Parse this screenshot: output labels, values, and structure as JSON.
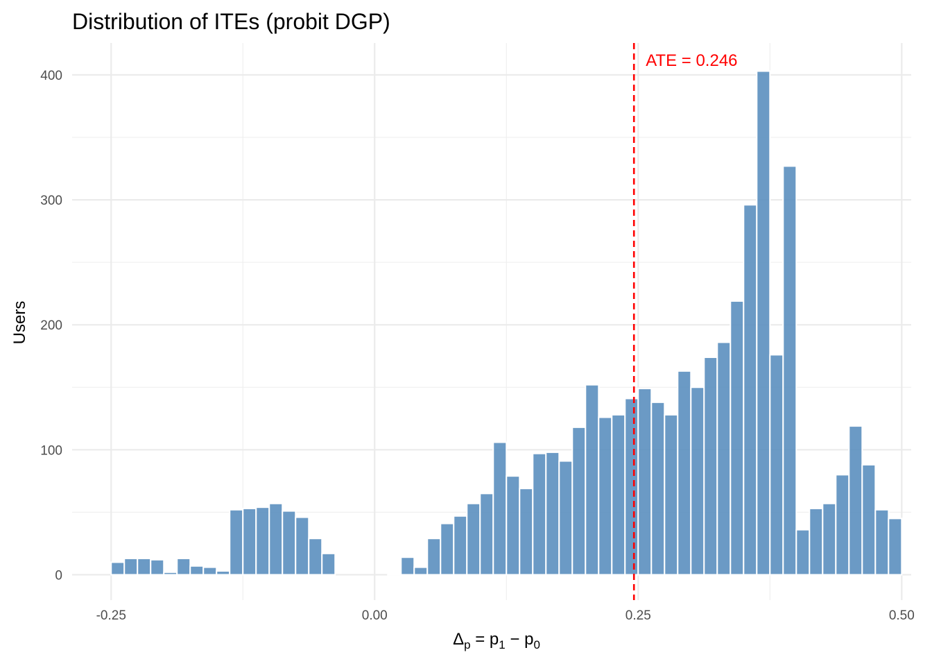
{
  "chart_data": {
    "type": "bar",
    "title": "Distribution of ITEs (probit DGP)",
    "xlabel": {
      "delta": "Δ",
      "sub_p": "p",
      "eq": " = p",
      "sub_1": "1",
      "minus": " − p",
      "sub_0": "0"
    },
    "ylabel": "Users",
    "x_ticks": [
      {
        "value": -0.25,
        "label": "-0.25"
      },
      {
        "value": 0.0,
        "label": "0.00"
      },
      {
        "value": 0.25,
        "label": "0.25"
      },
      {
        "value": 0.5,
        "label": "0.50"
      }
    ],
    "y_ticks": [
      {
        "value": 0,
        "label": "0"
      },
      {
        "value": 100,
        "label": "100"
      },
      {
        "value": 200,
        "label": "200"
      },
      {
        "value": 300,
        "label": "300"
      },
      {
        "value": 400,
        "label": "400"
      }
    ],
    "xlim": [
      -0.287,
      0.509
    ],
    "ylim": [
      -20.3,
      425.5
    ],
    "grid": true,
    "bin_start": -0.25,
    "bin_width": 0.0125,
    "values": [
      10,
      13,
      13,
      12,
      2,
      13,
      7,
      6,
      3,
      52,
      53,
      54,
      57,
      51,
      46,
      29,
      17,
      0,
      0,
      0,
      0,
      1,
      14,
      6,
      29,
      41,
      47,
      57,
      65,
      106,
      79,
      69,
      97,
      98,
      91,
      118,
      152,
      126,
      128,
      141,
      149,
      138,
      128,
      163,
      150,
      174,
      186,
      219,
      296,
      403,
      176,
      327,
      36,
      53,
      57,
      80,
      119,
      88,
      52,
      45
    ],
    "bar_color": "#5b8fbf",
    "reference_line": {
      "value": 0.246,
      "label": "ATE = 0.246",
      "color": "#ff0000",
      "style": "dashed"
    }
  }
}
